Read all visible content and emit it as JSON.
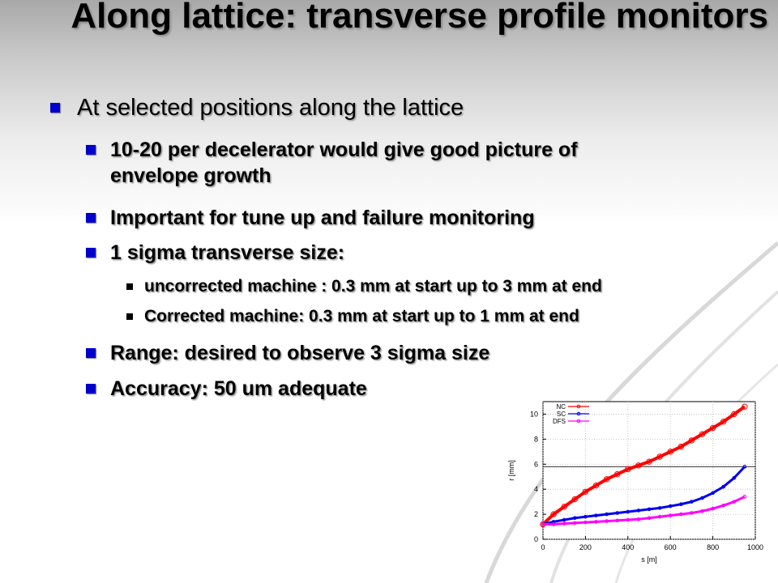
{
  "slide": {
    "title": "Along lattice: transverse profile monitors",
    "bullets": [
      {
        "level": 1,
        "text": "At selected positions along the lattice"
      },
      {
        "level": 2,
        "text": "10-20 per decelerator would give good picture of envelope growth"
      },
      {
        "level": 2,
        "text": "Important for tune up and failure monitoring"
      },
      {
        "level": 2,
        "text": "1 sigma transverse size:"
      },
      {
        "level": 3,
        "text": "uncorrected machine : 0.3 mm at start up to 3 mm at end"
      },
      {
        "level": 3,
        "text": "Corrected machine: 0.3 mm at start up to 1 mm at end"
      },
      {
        "level": 2,
        "text": "Range: desired to observe 3 sigma size"
      },
      {
        "level": 2,
        "text": "Accuracy: 50 um adequate"
      }
    ]
  },
  "colors": {
    "bullet_primary": "#0000cc",
    "NC": "#ff0000",
    "SC": "#0000ee",
    "DFS": "#ff00ff"
  },
  "chart_data": {
    "type": "line",
    "title": "",
    "xlabel": "s [m]",
    "ylabel": "r [mm]",
    "xlim": [
      0,
      1000
    ],
    "ylim": [
      0,
      11
    ],
    "xticks": [
      0,
      200,
      400,
      600,
      800,
      1000
    ],
    "yticks": [
      0,
      2,
      4,
      6,
      8,
      10
    ],
    "grid": true,
    "legend": "top-left",
    "reference_line_y": 5.8,
    "series": [
      {
        "name": "NC",
        "color": "#ff0000",
        "x": [
          0,
          50,
          100,
          150,
          200,
          250,
          300,
          350,
          400,
          450,
          500,
          550,
          600,
          650,
          700,
          750,
          800,
          850,
          900,
          950
        ],
        "y": [
          1.2,
          2.0,
          2.6,
          3.2,
          3.8,
          4.3,
          4.8,
          5.2,
          5.6,
          5.9,
          6.2,
          6.6,
          7.0,
          7.4,
          7.9,
          8.4,
          8.9,
          9.4,
          10.0,
          10.6
        ]
      },
      {
        "name": "SC",
        "color": "#0000ee",
        "x": [
          0,
          50,
          100,
          150,
          200,
          250,
          300,
          350,
          400,
          450,
          500,
          550,
          600,
          650,
          700,
          750,
          800,
          850,
          900,
          950
        ],
        "y": [
          1.2,
          1.4,
          1.55,
          1.7,
          1.8,
          1.9,
          2.0,
          2.1,
          2.2,
          2.3,
          2.4,
          2.5,
          2.65,
          2.8,
          3.0,
          3.3,
          3.7,
          4.2,
          4.9,
          5.8
        ]
      },
      {
        "name": "DFS",
        "color": "#ff00ff",
        "x": [
          0,
          50,
          100,
          150,
          200,
          250,
          300,
          350,
          400,
          450,
          500,
          550,
          600,
          650,
          700,
          750,
          800,
          850,
          900,
          950
        ],
        "y": [
          1.2,
          1.2,
          1.25,
          1.3,
          1.35,
          1.4,
          1.45,
          1.5,
          1.55,
          1.6,
          1.7,
          1.8,
          1.9,
          2.0,
          2.1,
          2.25,
          2.45,
          2.7,
          3.0,
          3.4
        ]
      }
    ]
  }
}
